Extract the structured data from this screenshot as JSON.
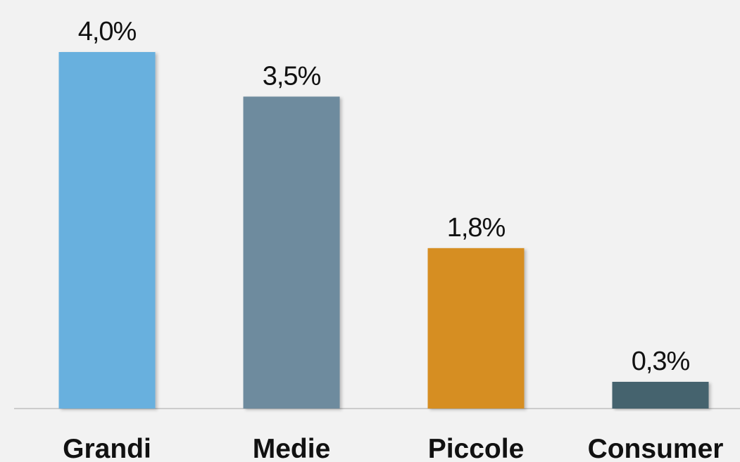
{
  "chart_data": {
    "type": "bar",
    "categories": [
      "Grandi",
      "Medie",
      "Piccole",
      "Consumer"
    ],
    "values": [
      4.0,
      3.5,
      1.8,
      0.3
    ],
    "value_labels": [
      "4,0%",
      "3,5%",
      "1,8%",
      "0,3%"
    ],
    "colors": [
      "#67b0de",
      "#6e8b9e",
      "#d68e24",
      "#44646e"
    ],
    "title": "",
    "xlabel": "",
    "ylabel": "",
    "ylim": [
      0,
      4.0
    ],
    "grid": false,
    "legend": "none",
    "axis_line_color": "#cccccc"
  }
}
